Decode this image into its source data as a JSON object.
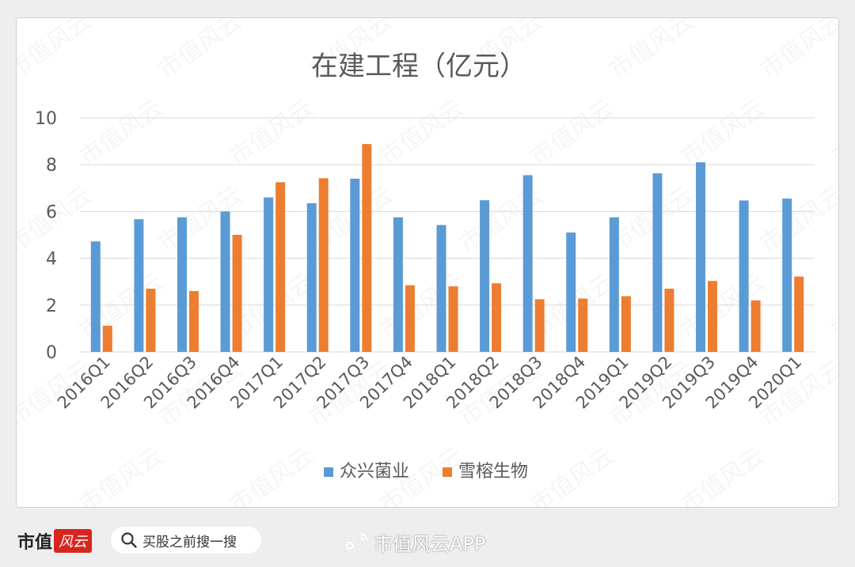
{
  "chart_data": {
    "type": "bar",
    "title": "在建工程（亿元）",
    "categories": [
      "2016Q1",
      "2016Q2",
      "2016Q3",
      "2016Q4",
      "2017Q1",
      "2017Q2",
      "2017Q3",
      "2017Q4",
      "2018Q1",
      "2018Q2",
      "2018Q3",
      "2018Q4",
      "2019Q1",
      "2019Q2",
      "2019Q3",
      "2019Q4",
      "2020Q1"
    ],
    "series": [
      {
        "name": "众兴菌业",
        "color": "#5b9bd5",
        "values": [
          4.72,
          5.67,
          5.75,
          6.0,
          6.6,
          6.35,
          7.4,
          5.75,
          5.42,
          6.48,
          7.55,
          5.1,
          5.75,
          7.63,
          8.1,
          6.47,
          6.55
        ]
      },
      {
        "name": "雪榕生物",
        "color": "#ed7d31",
        "values": [
          1.12,
          2.7,
          2.6,
          5.0,
          7.25,
          7.42,
          8.88,
          2.85,
          2.8,
          2.93,
          2.25,
          2.28,
          2.38,
          2.7,
          3.03,
          2.2,
          3.22
        ]
      }
    ],
    "yticks": [
      "0",
      "2",
      "4",
      "6",
      "8",
      "10"
    ],
    "ylim": [
      0,
      10
    ],
    "grid": true,
    "legend_position": "bottom"
  },
  "watermark": "市值风云",
  "footer": {
    "brand": "市值",
    "brand_logo": "风云",
    "search_text": "买股之前搜一搜",
    "weibo_text": "市值风云APP"
  }
}
